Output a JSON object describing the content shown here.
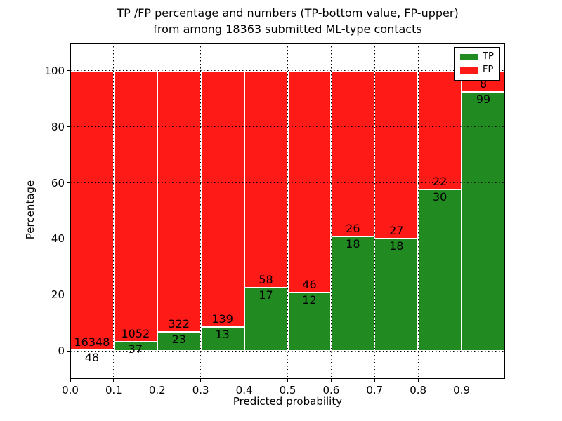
{
  "chart_data": {
    "type": "bar",
    "stacked": true,
    "title_lines": [
      "TP /FP percentage and numbers (TP-bottom value, FP-upper)",
      "from among 18363 submitted ML-type contacts"
    ],
    "xlabel": "Predicted probability",
    "ylabel": "Percentage",
    "xlim": [
      0.0,
      1.0
    ],
    "ylim": [
      -10,
      110
    ],
    "bin_width": 0.1,
    "bin_starts": [
      0.0,
      0.1,
      0.2,
      0.3,
      0.4,
      0.5,
      0.6,
      0.7,
      0.8,
      0.9
    ],
    "x_tick_values": [
      0.0,
      0.1,
      0.2,
      0.3,
      0.4,
      0.5,
      0.6,
      0.7,
      0.8,
      0.9
    ],
    "x_tick_labels": [
      "0.0",
      "0.1",
      "0.2",
      "0.3",
      "0.4",
      "0.5",
      "0.6",
      "0.7",
      "0.8",
      "0.9"
    ],
    "y_tick_values": [
      0,
      20,
      40,
      60,
      80,
      100
    ],
    "y_tick_labels": [
      "0",
      "20",
      "40",
      "60",
      "80",
      "100"
    ],
    "grid": true,
    "series": [
      {
        "name": "TP",
        "color": "#218a21",
        "counts": [
          48,
          37,
          23,
          13,
          17,
          12,
          18,
          18,
          30,
          99
        ]
      },
      {
        "name": "FP",
        "color": "#fd1a17",
        "counts": [
          16348,
          1052,
          322,
          139,
          58,
          46,
          26,
          27,
          22,
          8
        ]
      }
    ],
    "tp_percent": [
      0.3,
      3.4,
      6.7,
      8.6,
      22.7,
      20.7,
      40.9,
      40.0,
      57.7,
      92.5
    ],
    "total_contacts": 18363,
    "legend": {
      "position": "upper right",
      "entries": [
        {
          "label": "TP",
          "color": "#218a21"
        },
        {
          "label": "FP",
          "color": "#fd1a17"
        }
      ]
    }
  }
}
